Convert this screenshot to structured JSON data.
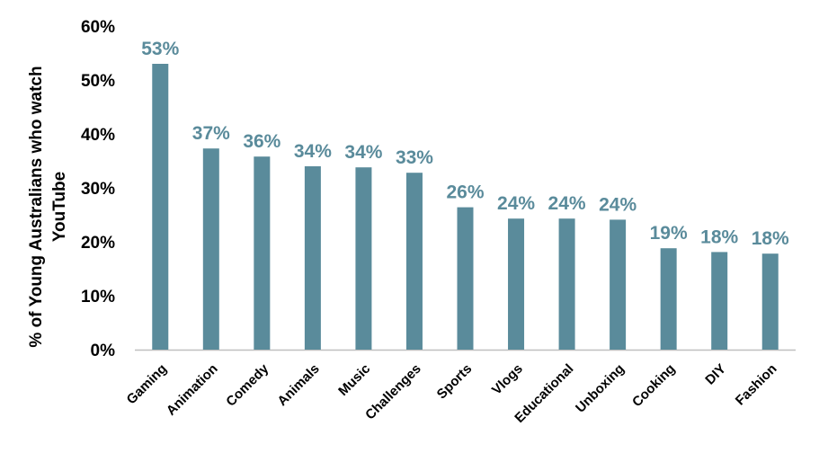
{
  "chart_data": {
    "type": "bar",
    "ylabel_lines": [
      "% of Young Australians who watch",
      "YouTube"
    ],
    "categories": [
      "Gaming",
      "Animation",
      "Comedy",
      "Animals",
      "Music",
      "Challenges",
      "Sports",
      "Vlogs",
      "Educational",
      "Unboxing",
      "Cooking",
      "DIY",
      "Fashion"
    ],
    "values": [
      53,
      37.3,
      35.8,
      34,
      33.8,
      32.8,
      26.4,
      24.3,
      24.3,
      24.1,
      18.8,
      18.1,
      17.8
    ],
    "data_labels": [
      "53%",
      "37%",
      "36%",
      "34%",
      "34%",
      "33%",
      "26%",
      "24%",
      "24%",
      "24%",
      "19%",
      "18%",
      "18%"
    ],
    "y_ticks": [
      0,
      10,
      20,
      30,
      40,
      50,
      60
    ],
    "y_tick_labels": [
      "0%",
      "10%",
      "20%",
      "30%",
      "40%",
      "50%",
      "60%"
    ],
    "ylim": [
      0,
      60
    ],
    "grid": false,
    "legend": "none",
    "bar_color": "#5a8b9b",
    "label_color": "#5a8b9b"
  }
}
